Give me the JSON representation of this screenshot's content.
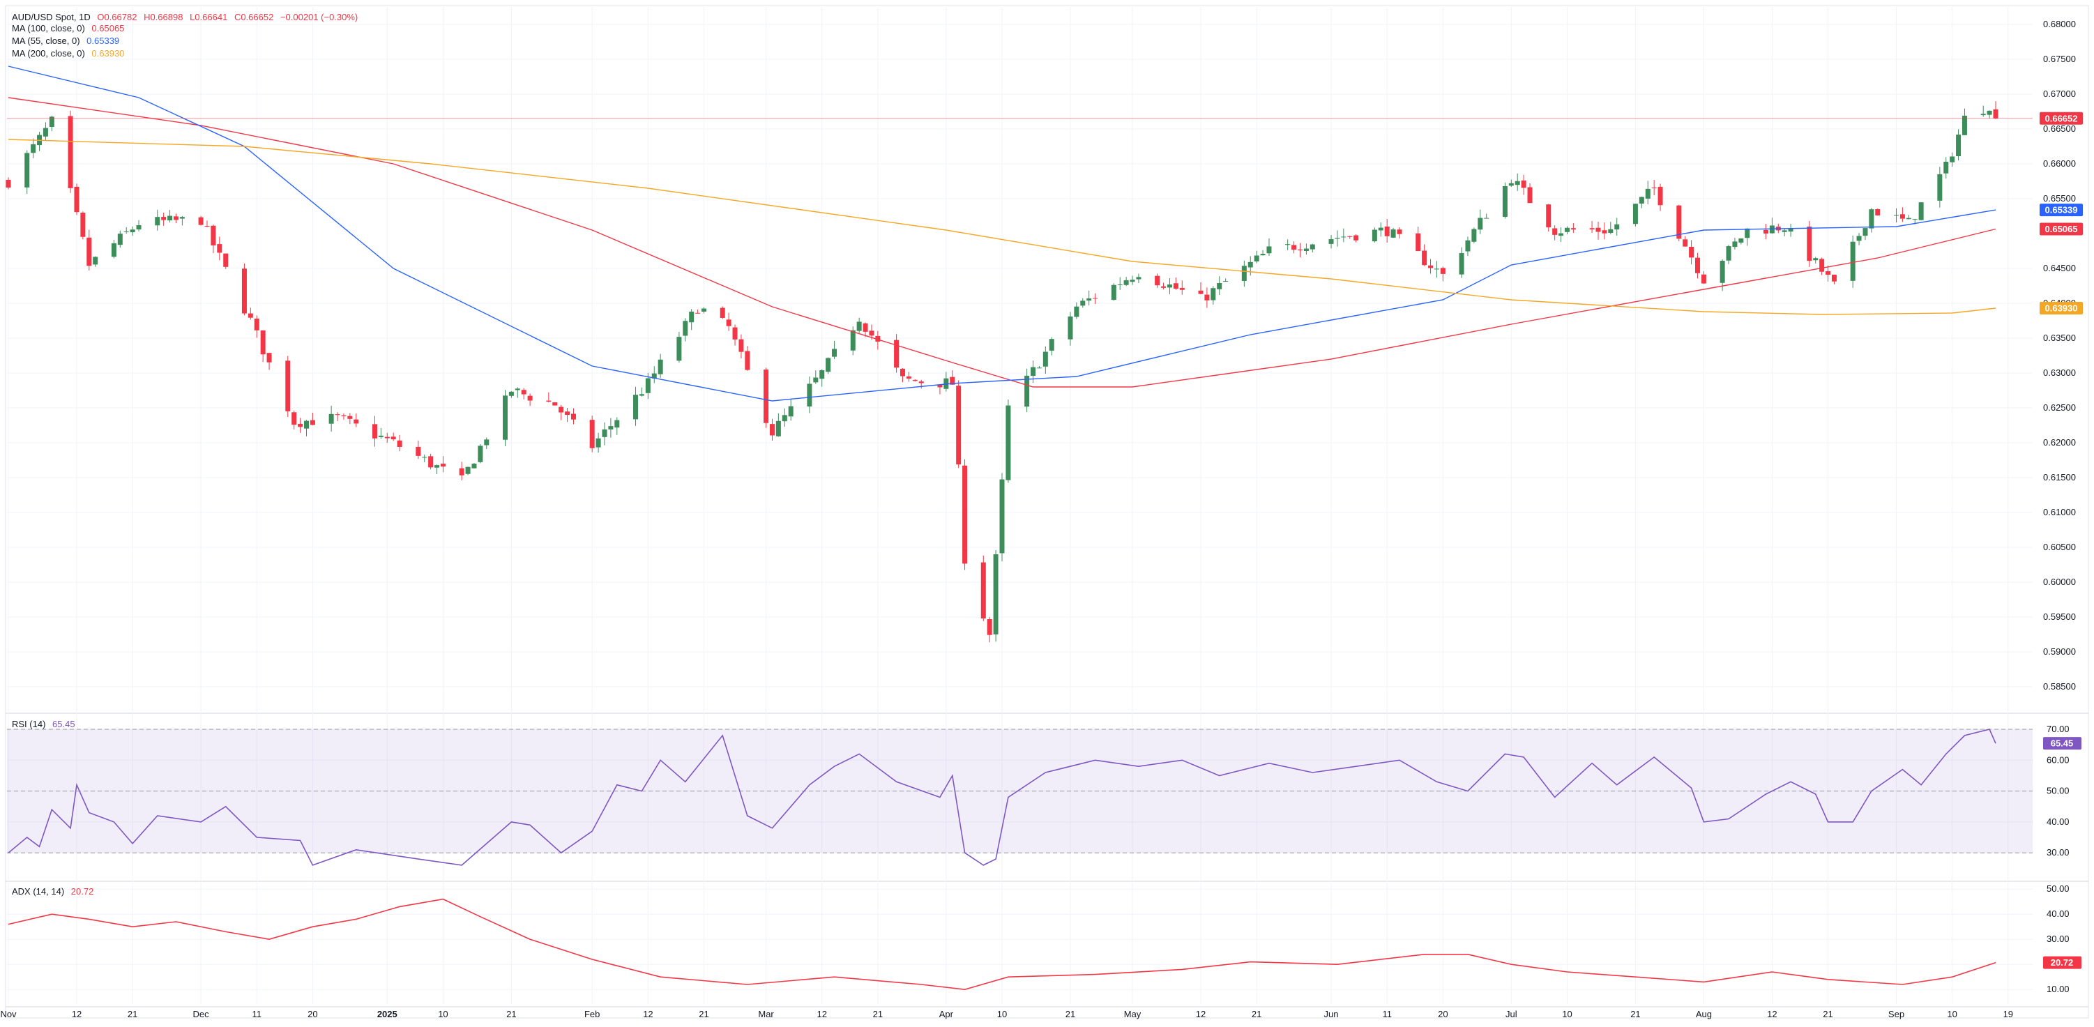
{
  "price_legend": {
    "symbol": "AUD/USD Spot, 1D",
    "open": "O0.66782",
    "high": "H0.66898",
    "low": "L0.66641",
    "close": "C0.66652",
    "change": "−0.00201 (−0.30%)"
  },
  "ma_legends": [
    {
      "label": "MA (100, close, 0)",
      "value": "0.65065",
      "color": "#f23645"
    },
    {
      "label": "MA (55, close, 0)",
      "value": "0.65339",
      "color": "#2962ff"
    },
    {
      "label": "MA (200, close, 0)",
      "value": "0.63930",
      "color": "#f5a623"
    }
  ],
  "rsi_legend": {
    "label": "RSI (14)",
    "value": "65.45"
  },
  "adx_legend": {
    "label": "ADX (14, 14)",
    "value": "20.72"
  },
  "price_badges": [
    {
      "text": "0.66652",
      "color": "#f23645",
      "value": 0.66652
    },
    {
      "text": "0.65339",
      "color": "#2962ff",
      "value": 0.65339
    },
    {
      "text": "0.65065",
      "color": "#f23645",
      "value": 0.65065
    },
    {
      "text": "0.63930",
      "color": "#f5a623",
      "value": 0.6393
    }
  ],
  "rsi_badge": {
    "text": "65.45",
    "value": 65.45
  },
  "adx_badge": {
    "text": "20.72",
    "value": 20.72
  },
  "x_axis_labels": [
    "Nov",
    "12",
    "21",
    "Dec",
    "11",
    "20",
    "2025",
    "10",
    "21",
    "Feb",
    "12",
    "21",
    "Mar",
    "12",
    "21",
    "Apr",
    "10",
    "21",
    "May",
    "12",
    "21",
    "Jun",
    "11",
    "20",
    "Jul",
    "10",
    "21",
    "Aug",
    "12",
    "21",
    "Sep",
    "10",
    "19"
  ],
  "colors": {
    "up": "#3d8d5b",
    "down": "#f23645",
    "ma100": "#f23645",
    "ma55": "#2962ff",
    "ma200": "#f5a623",
    "rsi": "#7e57c2",
    "adx": "#f23645",
    "grid": "#f0f3fa",
    "axis_text": "#131722"
  },
  "chart_data": [
    {
      "type": "candlestick",
      "title": "AUD/USD Spot, 1D",
      "ylim": [
        0.5815,
        0.6825
      ],
      "y_ticks": [
        "0.68000",
        "0.67500",
        "0.67000",
        "0.66500",
        "0.66000",
        "0.65500",
        "0.64500",
        "0.64000",
        "0.63500",
        "0.63000",
        "0.62500",
        "0.62000",
        "0.61500",
        "0.61000",
        "0.60500",
        "0.60000",
        "0.59500",
        "0.59000",
        "0.58500"
      ],
      "x_labels": [
        "Nov",
        "12",
        "21",
        "Dec",
        "11",
        "20",
        "2025",
        "10",
        "21",
        "Feb",
        "12",
        "21",
        "Mar",
        "12",
        "21",
        "Apr",
        "10",
        "21",
        "May",
        "12",
        "21",
        "Jun",
        "11",
        "20",
        "Jul",
        "10",
        "21",
        "Aug",
        "12",
        "21",
        "Sep",
        "10",
        "19"
      ],
      "close_path": [
        {
          "date": "2024-11-01",
          "close": 0.6575
        },
        {
          "date": "2024-11-08",
          "close": 0.666
        },
        {
          "date": "2024-11-14",
          "close": 0.6455
        },
        {
          "date": "2024-11-22",
          "close": 0.6515
        },
        {
          "date": "2024-12-02",
          "close": 0.652
        },
        {
          "date": "2024-12-10",
          "close": 0.6375
        },
        {
          "date": "2024-12-17",
          "close": 0.623
        },
        {
          "date": "2024-12-24",
          "close": 0.6235
        },
        {
          "date": "2025-01-02",
          "close": 0.62
        },
        {
          "date": "2025-01-13",
          "close": 0.6145
        },
        {
          "date": "2025-01-21",
          "close": 0.6275
        },
        {
          "date": "2025-01-28",
          "close": 0.6255
        },
        {
          "date": "2025-02-03",
          "close": 0.6195
        },
        {
          "date": "2025-02-12",
          "close": 0.6285
        },
        {
          "date": "2025-02-20",
          "close": 0.6395
        },
        {
          "date": "2025-02-25",
          "close": 0.6365
        },
        {
          "date": "2025-03-04",
          "close": 0.6215
        },
        {
          "date": "2025-03-12",
          "close": 0.63
        },
        {
          "date": "2025-03-18",
          "close": 0.638
        },
        {
          "date": "2025-03-25",
          "close": 0.629
        },
        {
          "date": "2025-04-02",
          "close": 0.6285
        },
        {
          "date": "2025-04-04",
          "close": 0.6035
        },
        {
          "date": "2025-04-08",
          "close": 0.5925
        },
        {
          "date": "2025-04-11",
          "close": 0.625
        },
        {
          "date": "2025-04-22",
          "close": 0.6395
        },
        {
          "date": "2025-05-02",
          "close": 0.6445
        },
        {
          "date": "2025-05-12",
          "close": 0.6405
        },
        {
          "date": "2025-05-23",
          "close": 0.6475
        },
        {
          "date": "2025-06-03",
          "close": 0.6495
        },
        {
          "date": "2025-06-11",
          "close": 0.6505
        },
        {
          "date": "2025-06-20",
          "close": 0.644
        },
        {
          "date": "2025-07-01",
          "close": 0.658
        },
        {
          "date": "2025-07-08",
          "close": 0.6505
        },
        {
          "date": "2025-07-17",
          "close": 0.6505
        },
        {
          "date": "2025-07-24",
          "close": 0.6565
        },
        {
          "date": "2025-08-01",
          "close": 0.6435
        },
        {
          "date": "2025-08-08",
          "close": 0.6505
        },
        {
          "date": "2025-08-14",
          "close": 0.651
        },
        {
          "date": "2025-08-22",
          "close": 0.6425
        },
        {
          "date": "2025-08-28",
          "close": 0.6535
        },
        {
          "date": "2025-09-03",
          "close": 0.6515
        },
        {
          "date": "2025-09-09",
          "close": 0.6595
        },
        {
          "date": "2025-09-12",
          "close": 0.6665
        },
        {
          "date": "2025-09-16",
          "close": 0.6685
        },
        {
          "date": "2025-09-17",
          "close": 0.66652
        }
      ],
      "series": [
        {
          "name": "MA (100, close, 0)",
          "points": [
            {
              "date": "2024-11-01",
              "value": 0.6695
            },
            {
              "date": "2024-12-02",
              "value": 0.6655
            },
            {
              "date": "2025-01-02",
              "value": 0.66
            },
            {
              "date": "2025-02-03",
              "value": 0.6505
            },
            {
              "date": "2025-03-04",
              "value": 0.6395
            },
            {
              "date": "2025-04-02",
              "value": 0.6315
            },
            {
              "date": "2025-04-15",
              "value": 0.628
            },
            {
              "date": "2025-05-01",
              "value": 0.628
            },
            {
              "date": "2025-06-02",
              "value": 0.632
            },
            {
              "date": "2025-07-01",
              "value": 0.637
            },
            {
              "date": "2025-08-01",
              "value": 0.642
            },
            {
              "date": "2025-08-29",
              "value": 0.6465
            },
            {
              "date": "2025-09-17",
              "value": 0.65065
            }
          ]
        },
        {
          "name": "MA (55, close, 0)",
          "points": [
            {
              "date": "2024-11-01",
              "value": 0.674
            },
            {
              "date": "2024-11-22",
              "value": 0.6695
            },
            {
              "date": "2024-12-09",
              "value": 0.6625
            },
            {
              "date": "2025-01-02",
              "value": 0.645
            },
            {
              "date": "2025-02-03",
              "value": 0.631
            },
            {
              "date": "2025-03-04",
              "value": 0.626
            },
            {
              "date": "2025-04-02",
              "value": 0.6285
            },
            {
              "date": "2025-04-22",
              "value": 0.6295
            },
            {
              "date": "2025-05-20",
              "value": 0.6355
            },
            {
              "date": "2025-06-20",
              "value": 0.6405
            },
            {
              "date": "2025-07-01",
              "value": 0.6455
            },
            {
              "date": "2025-08-01",
              "value": 0.6505
            },
            {
              "date": "2025-09-01",
              "value": 0.651
            },
            {
              "date": "2025-09-17",
              "value": 0.65339
            }
          ]
        },
        {
          "name": "MA (200, close, 0)",
          "points": [
            {
              "date": "2024-11-01",
              "value": 0.6635
            },
            {
              "date": "2024-12-09",
              "value": 0.6625
            },
            {
              "date": "2025-01-08",
              "value": 0.66
            },
            {
              "date": "2025-02-12",
              "value": 0.6565
            },
            {
              "date": "2025-04-01",
              "value": 0.6505
            },
            {
              "date": "2025-05-01",
              "value": 0.646
            },
            {
              "date": "2025-06-02",
              "value": 0.6435
            },
            {
              "date": "2025-07-01",
              "value": 0.6405
            },
            {
              "date": "2025-08-01",
              "value": 0.6388
            },
            {
              "date": "2025-08-20",
              "value": 0.6384
            },
            {
              "date": "2025-09-10",
              "value": 0.6386
            },
            {
              "date": "2025-09-17",
              "value": 0.6393
            }
          ]
        }
      ],
      "last_price": 0.66652
    },
    {
      "type": "line",
      "title": "RSI (14)",
      "ylim": [
        25,
        72
      ],
      "y_ticks": [
        "70.00",
        "60.00",
        "50.00",
        "40.00",
        "30.00"
      ],
      "levels": [
        70,
        50,
        30
      ],
      "points": [
        {
          "date": "2024-11-01",
          "value": 30
        },
        {
          "date": "2024-11-04",
          "value": 35
        },
        {
          "date": "2024-11-06",
          "value": 32
        },
        {
          "date": "2024-11-08",
          "value": 44
        },
        {
          "date": "2024-11-11",
          "value": 38
        },
        {
          "date": "2024-11-12",
          "value": 52
        },
        {
          "date": "2024-11-14",
          "value": 43
        },
        {
          "date": "2024-11-18",
          "value": 40
        },
        {
          "date": "2024-11-21",
          "value": 33
        },
        {
          "date": "2024-11-25",
          "value": 42
        },
        {
          "date": "2024-12-02",
          "value": 40
        },
        {
          "date": "2024-12-06",
          "value": 45
        },
        {
          "date": "2024-12-11",
          "value": 35
        },
        {
          "date": "2024-12-18",
          "value": 34
        },
        {
          "date": "2024-12-20",
          "value": 26
        },
        {
          "date": "2024-12-27",
          "value": 31
        },
        {
          "date": "2025-01-06",
          "value": 28
        },
        {
          "date": "2025-01-13",
          "value": 26
        },
        {
          "date": "2025-01-21",
          "value": 40
        },
        {
          "date": "2025-01-24",
          "value": 39
        },
        {
          "date": "2025-01-29",
          "value": 30
        },
        {
          "date": "2025-02-03",
          "value": 37
        },
        {
          "date": "2025-02-07",
          "value": 52
        },
        {
          "date": "2025-02-11",
          "value": 50
        },
        {
          "date": "2025-02-14",
          "value": 60
        },
        {
          "date": "2025-02-18",
          "value": 53
        },
        {
          "date": "2025-02-24",
          "value": 68
        },
        {
          "date": "2025-02-28",
          "value": 42
        },
        {
          "date": "2025-03-04",
          "value": 38
        },
        {
          "date": "2025-03-10",
          "value": 52
        },
        {
          "date": "2025-03-14",
          "value": 58
        },
        {
          "date": "2025-03-18",
          "value": 62
        },
        {
          "date": "2025-03-24",
          "value": 53
        },
        {
          "date": "2025-03-31",
          "value": 48
        },
        {
          "date": "2025-04-02",
          "value": 55
        },
        {
          "date": "2025-04-04",
          "value": 30
        },
        {
          "date": "2025-04-07",
          "value": 26
        },
        {
          "date": "2025-04-09",
          "value": 28
        },
        {
          "date": "2025-04-11",
          "value": 48
        },
        {
          "date": "2025-04-17",
          "value": 56
        },
        {
          "date": "2025-04-25",
          "value": 60
        },
        {
          "date": "2025-05-02",
          "value": 58
        },
        {
          "date": "2025-05-09",
          "value": 60
        },
        {
          "date": "2025-05-15",
          "value": 55
        },
        {
          "date": "2025-05-23",
          "value": 59
        },
        {
          "date": "2025-05-30",
          "value": 56
        },
        {
          "date": "2025-06-06",
          "value": 58
        },
        {
          "date": "2025-06-13",
          "value": 60
        },
        {
          "date": "2025-06-19",
          "value": 53
        },
        {
          "date": "2025-06-24",
          "value": 50
        },
        {
          "date": "2025-06-30",
          "value": 62
        },
        {
          "date": "2025-07-03",
          "value": 61
        },
        {
          "date": "2025-07-08",
          "value": 48
        },
        {
          "date": "2025-07-14",
          "value": 59
        },
        {
          "date": "2025-07-18",
          "value": 52
        },
        {
          "date": "2025-07-24",
          "value": 61
        },
        {
          "date": "2025-07-30",
          "value": 51
        },
        {
          "date": "2025-08-01",
          "value": 40
        },
        {
          "date": "2025-08-05",
          "value": 41
        },
        {
          "date": "2025-08-11",
          "value": 49
        },
        {
          "date": "2025-08-15",
          "value": 53
        },
        {
          "date": "2025-08-19",
          "value": 49
        },
        {
          "date": "2025-08-21",
          "value": 40
        },
        {
          "date": "2025-08-25",
          "value": 40
        },
        {
          "date": "2025-08-28",
          "value": 50
        },
        {
          "date": "2025-09-02",
          "value": 57
        },
        {
          "date": "2025-09-05",
          "value": 52
        },
        {
          "date": "2025-09-09",
          "value": 62
        },
        {
          "date": "2025-09-12",
          "value": 68
        },
        {
          "date": "2025-09-16",
          "value": 70
        },
        {
          "date": "2025-09-17",
          "value": 65.45
        }
      ]
    },
    {
      "type": "line",
      "title": "ADX (14, 14)",
      "ylim": [
        5,
        52
      ],
      "y_ticks": [
        "50.00",
        "40.00",
        "30.00",
        "20.00",
        "10.00"
      ],
      "points": [
        {
          "date": "2024-11-01",
          "value": 36
        },
        {
          "date": "2024-11-08",
          "value": 40
        },
        {
          "date": "2024-11-14",
          "value": 38
        },
        {
          "date": "2024-11-21",
          "value": 35
        },
        {
          "date": "2024-11-28",
          "value": 37
        },
        {
          "date": "2024-12-06",
          "value": 33
        },
        {
          "date": "2024-12-13",
          "value": 30
        },
        {
          "date": "2024-12-20",
          "value": 35
        },
        {
          "date": "2024-12-27",
          "value": 38
        },
        {
          "date": "2025-01-03",
          "value": 43
        },
        {
          "date": "2025-01-10",
          "value": 46
        },
        {
          "date": "2025-01-16",
          "value": 39
        },
        {
          "date": "2025-01-24",
          "value": 30
        },
        {
          "date": "2025-02-03",
          "value": 22
        },
        {
          "date": "2025-02-14",
          "value": 15
        },
        {
          "date": "2025-02-28",
          "value": 12
        },
        {
          "date": "2025-03-14",
          "value": 15
        },
        {
          "date": "2025-03-28",
          "value": 12
        },
        {
          "date": "2025-04-04",
          "value": 10
        },
        {
          "date": "2025-04-11",
          "value": 15
        },
        {
          "date": "2025-04-25",
          "value": 16
        },
        {
          "date": "2025-05-09",
          "value": 18
        },
        {
          "date": "2025-05-20",
          "value": 21
        },
        {
          "date": "2025-06-03",
          "value": 20
        },
        {
          "date": "2025-06-17",
          "value": 24
        },
        {
          "date": "2025-06-24",
          "value": 24
        },
        {
          "date": "2025-07-01",
          "value": 20
        },
        {
          "date": "2025-07-10",
          "value": 17
        },
        {
          "date": "2025-07-21",
          "value": 15
        },
        {
          "date": "2025-08-01",
          "value": 13
        },
        {
          "date": "2025-08-12",
          "value": 17
        },
        {
          "date": "2025-08-21",
          "value": 14
        },
        {
          "date": "2025-09-02",
          "value": 12
        },
        {
          "date": "2025-09-10",
          "value": 15
        },
        {
          "date": "2025-09-17",
          "value": 20.72
        }
      ]
    }
  ]
}
